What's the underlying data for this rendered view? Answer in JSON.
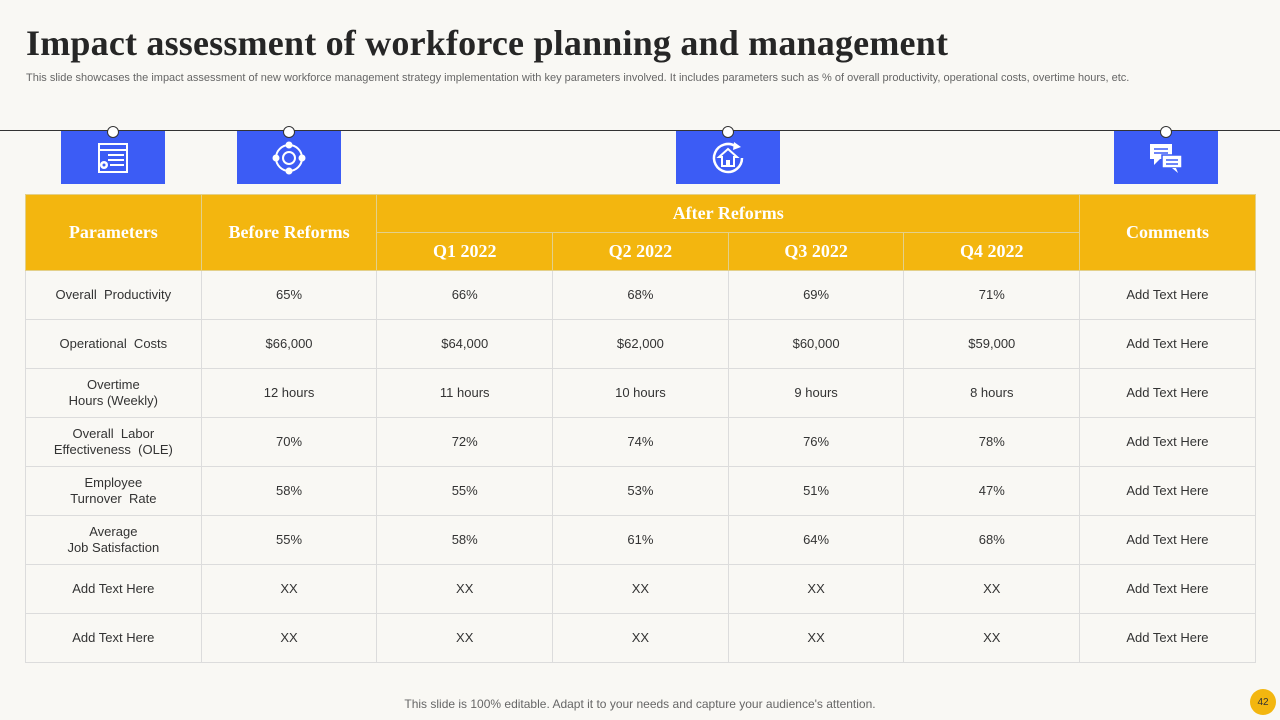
{
  "slide": {
    "title": "Impact assessment of workforce planning and management",
    "subtitle": "This slide showcases the impact assessment of new workforce management strategy implementation with key parameters involved. It includes parameters such as % of overall productivity, operational costs, overtime hours, etc.",
    "footer": "This slide is 100% editable. Adapt it to your needs and capture your audience's attention.",
    "page_number": "42"
  },
  "icons": [
    "settings-list-icon",
    "cycle-network-icon",
    "home-refresh-icon",
    "chat-bubbles-icon"
  ],
  "colors": {
    "accent": "#f3b60f",
    "icon_bg": "#3c5cf5",
    "background": "#f9f8f4"
  },
  "table": {
    "headers": {
      "parameters": "Parameters",
      "before": "Before Reforms",
      "after": "After Reforms",
      "comments": "Comments",
      "quarters": [
        "Q1 2022",
        "Q2 2022",
        "Q3 2022",
        "Q4 2022"
      ]
    },
    "rows": [
      {
        "param": [
          "Overall  Productivity"
        ],
        "before": "65%",
        "q": [
          "66%",
          "68%",
          "69%",
          "71%"
        ],
        "comment": "Add Text Here"
      },
      {
        "param": [
          "Operational  Costs"
        ],
        "before": "$66,000",
        "q": [
          "$64,000",
          "$62,000",
          "$60,000",
          "$59,000"
        ],
        "comment": "Add Text Here"
      },
      {
        "param": [
          "Overtime",
          "Hours (Weekly)"
        ],
        "before": "12 hours",
        "q": [
          "11 hours",
          "10 hours",
          "9 hours",
          "8 hours"
        ],
        "comment": "Add Text Here"
      },
      {
        "param": [
          "Overall  Labor",
          "Effectiveness  (OLE)"
        ],
        "before": "70%",
        "q": [
          "72%",
          "74%",
          "76%",
          "78%"
        ],
        "comment": "Add Text Here"
      },
      {
        "param": [
          "Employee",
          "Turnover  Rate"
        ],
        "before": "58%",
        "q": [
          "55%",
          "53%",
          "51%",
          "47%"
        ],
        "comment": "Add Text Here"
      },
      {
        "param": [
          "Average",
          "Job Satisfaction"
        ],
        "before": "55%",
        "q": [
          "58%",
          "61%",
          "64%",
          "68%"
        ],
        "comment": "Add Text Here"
      },
      {
        "param": [
          "Add Text Here"
        ],
        "before": "XX",
        "q": [
          "XX",
          "XX",
          "XX",
          "XX"
        ],
        "comment": "Add Text Here"
      },
      {
        "param": [
          "Add Text Here"
        ],
        "before": "XX",
        "q": [
          "XX",
          "XX",
          "XX",
          "XX"
        ],
        "comment": "Add Text Here"
      }
    ]
  }
}
